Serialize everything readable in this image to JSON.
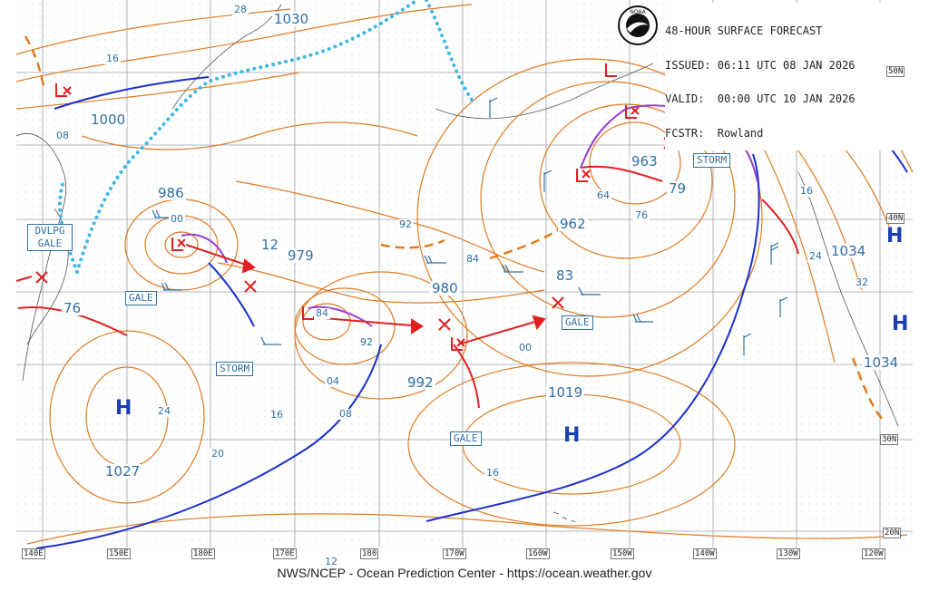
{
  "header": {
    "line1": "48-HOUR SURFACE FORECAST",
    "line2": "ISSUED: 06:11 UTC 08 JAN 2026",
    "line3": "VALID:  00:00 UTC 10 JAN 2026",
    "line4": "FCSTR:  Rowland"
  },
  "logo": {
    "text": "NOAA"
  },
  "footer": "NWS/NCEP - Ocean Prediction Center - https://ocean.weather.gov",
  "pressure_labels": [
    "1030",
    "1000",
    "986",
    "979",
    "980",
    "83",
    "962",
    "963",
    "79",
    "1034",
    "1034",
    "992",
    "1019",
    "1027",
    "76",
    "12"
  ],
  "contour_labels": [
    "28",
    "16",
    "08",
    "00",
    "92",
    "84",
    "04",
    "08",
    "16",
    "20",
    "24",
    "00",
    "16",
    "92",
    "84",
    "76",
    "64",
    "24",
    "32",
    "16",
    "12"
  ],
  "warning_boxes": [
    "DVLPG GALE",
    "GALE",
    "STORM",
    "GALE",
    "GALE",
    "STORM"
  ],
  "high_symbol": "H",
  "lat_labels": [
    "50N",
    "40N",
    "30N",
    "20N"
  ],
  "lon_labels": [
    "140E",
    "150E",
    "180E",
    "170E",
    "180",
    "170W",
    "160W",
    "150W",
    "140W",
    "130W",
    "120W"
  ],
  "colors": {
    "isobar": "#e07a20",
    "cold_front": "#1a2fd0",
    "warm_front": "#e02020",
    "occluded": "#9a3bd6",
    "ice_edge": "#3cb8e6",
    "grid": "#9aa0aa",
    "label": "#2d6fa8"
  }
}
